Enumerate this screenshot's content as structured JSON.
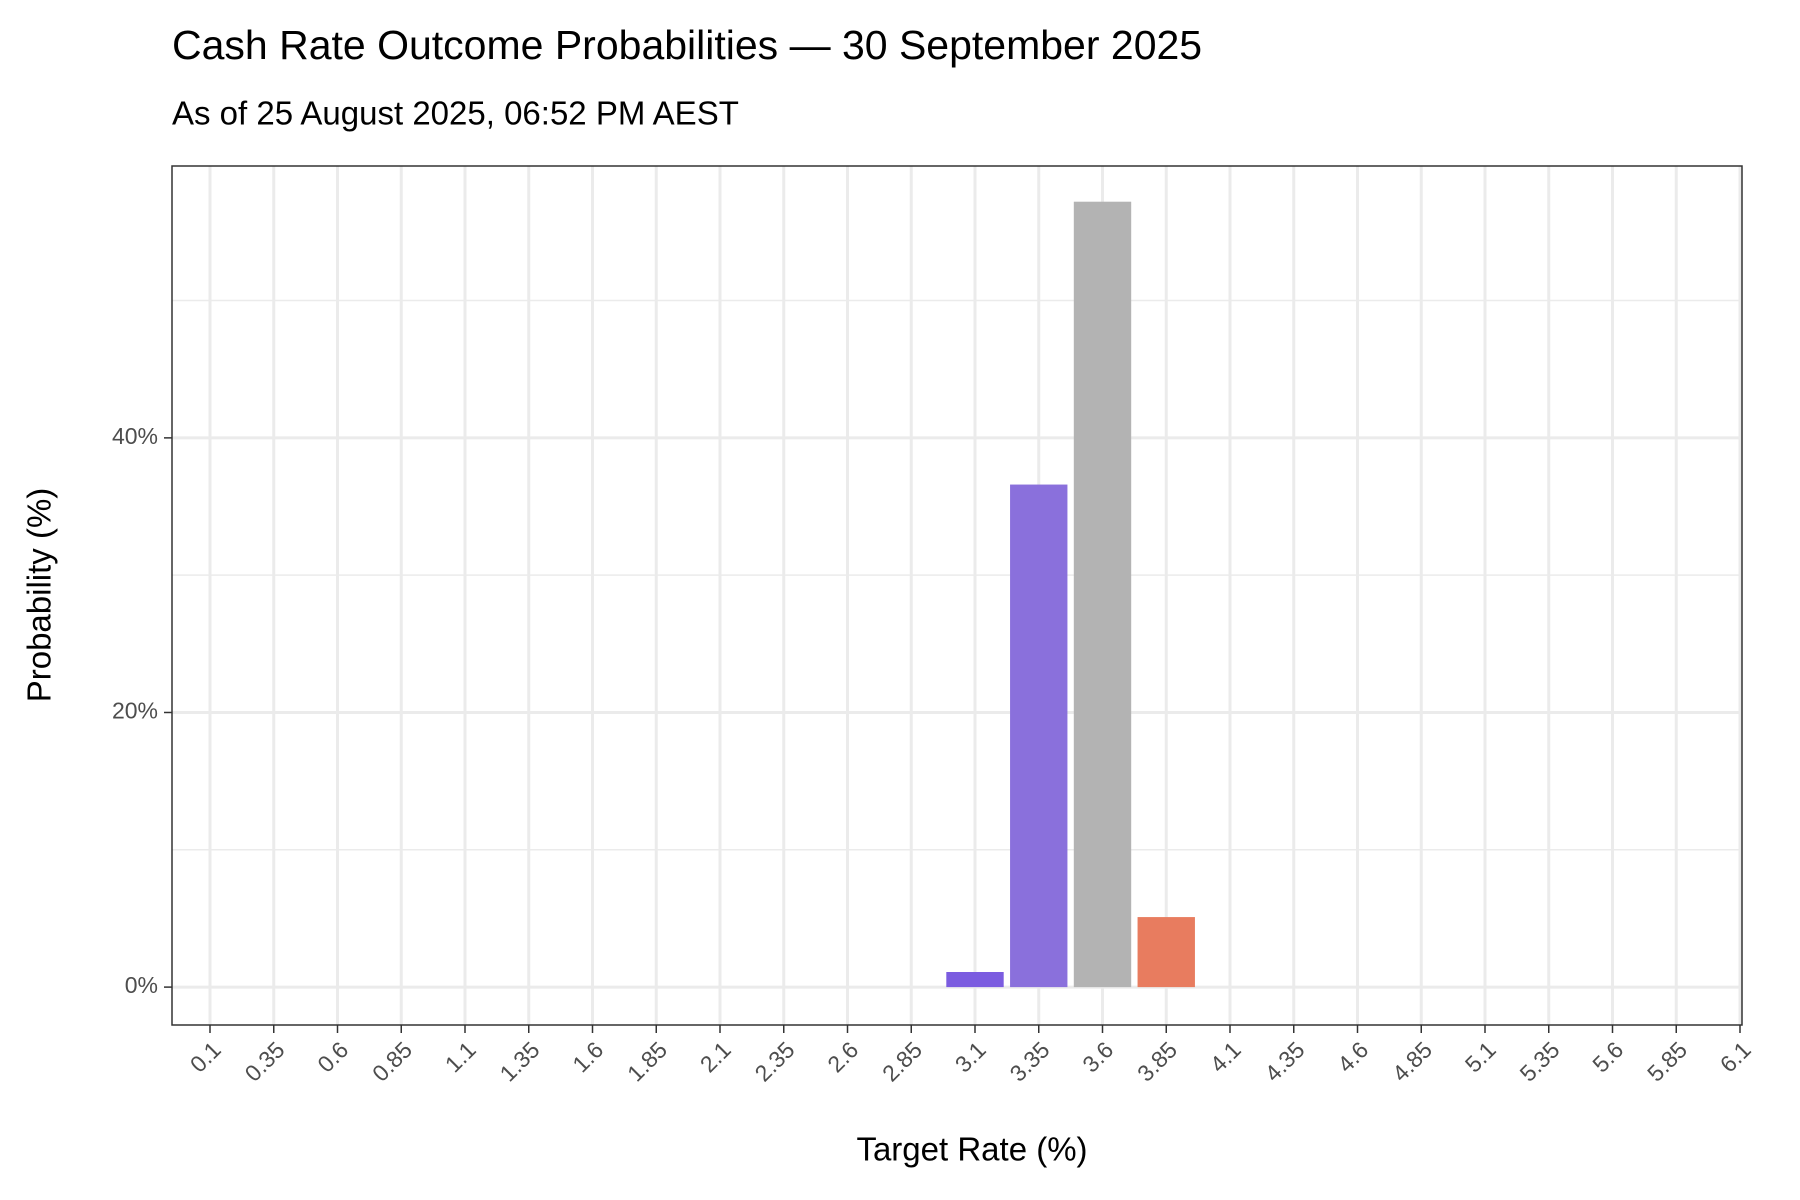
{
  "chart_data": {
    "type": "bar",
    "title": "Cash Rate Outcome Probabilities — 30 September 2025",
    "subtitle": "As of 25 August 2025, 06:52 PM AEST",
    "x_label": "Target Rate (%)",
    "y_label": "Probability (%)",
    "categories": [
      "0.1",
      "0.35",
      "0.6",
      "0.85",
      "1.1",
      "1.35",
      "1.6",
      "1.85",
      "2.1",
      "2.35",
      "2.6",
      "2.85",
      "3.1",
      "3.35",
      "3.6",
      "3.85",
      "4.1",
      "4.35",
      "4.6",
      "4.85",
      "5.1",
      "5.35",
      "5.6",
      "5.85",
      "6.1"
    ],
    "values": [
      0,
      0,
      0,
      0,
      0,
      0,
      0,
      0,
      0,
      0,
      0,
      0,
      1.1,
      36.6,
      57.2,
      5.1,
      0,
      0,
      0,
      0,
      0,
      0,
      0,
      0,
      0
    ],
    "colors": [
      "#7b5ce0",
      "#7b5ce0",
      "#7b5ce0",
      "#7b5ce0",
      "#7b5ce0",
      "#7b5ce0",
      "#7b5ce0",
      "#7b5ce0",
      "#7b5ce0",
      "#7b5ce0",
      "#7b5ce0",
      "#7b5ce0",
      "#7b5ce0",
      "#8a70dc",
      "#b3b3b3",
      "#e87c5f",
      "#e87c5f",
      "#e87c5f",
      "#e87c5f",
      "#e87c5f",
      "#e87c5f",
      "#e87c5f",
      "#e87c5f",
      "#e87c5f",
      "#e87c5f"
    ],
    "ylim": [
      -2.76,
      59.8
    ],
    "yticks": [
      {
        "value": 0,
        "label": "0%"
      },
      {
        "value": 20,
        "label": "20%"
      },
      {
        "value": 40,
        "label": "40%"
      }
    ],
    "y_minor_grid": [
      10,
      30,
      50
    ],
    "grid": true
  }
}
